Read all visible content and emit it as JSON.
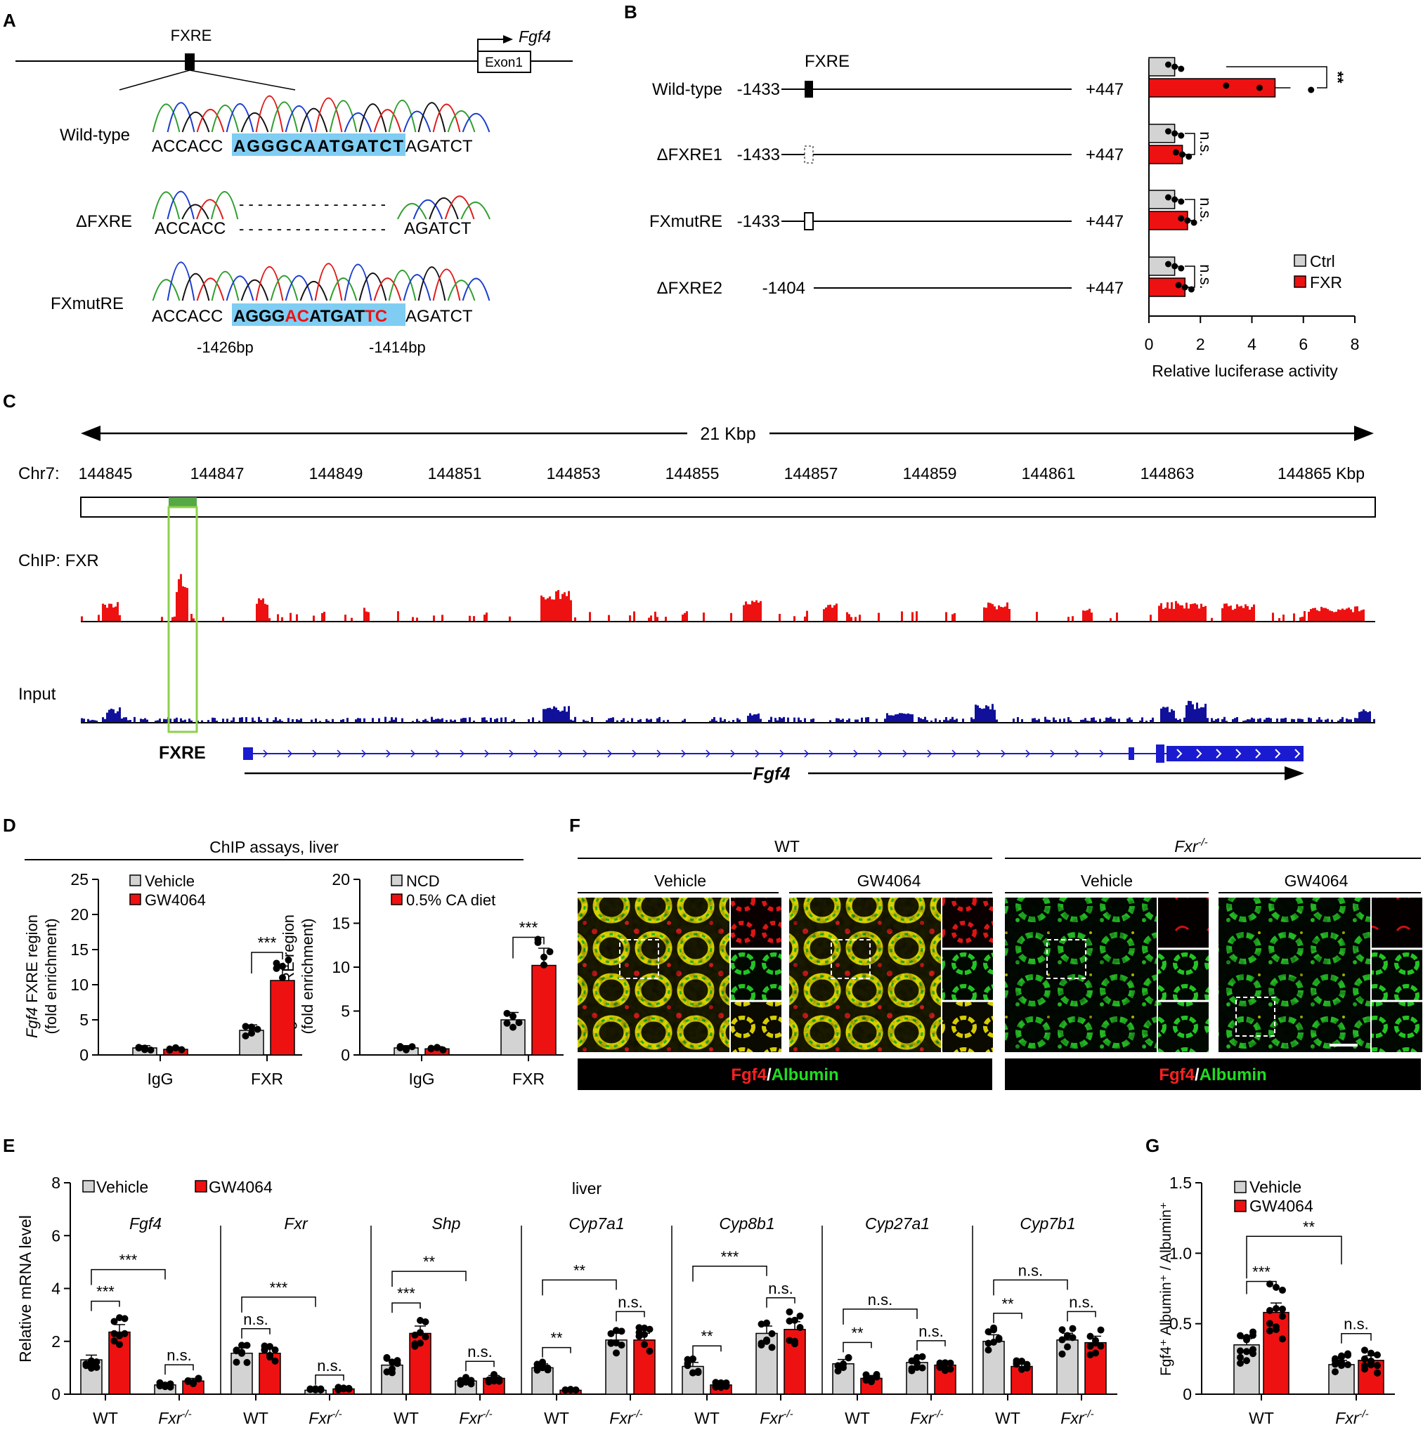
{
  "panels": {
    "A": {
      "letter": "A",
      "fxre_label": "FXRE",
      "gene_label": "Fgf4",
      "exon_label": "Exon1",
      "rows": [
        {
          "name": "Wild-type",
          "left": "ACCACC",
          "core": "AGGGCAATGATCT",
          "right": "AGATCT"
        },
        {
          "name": "ΔFXRE",
          "left": "ACCACC",
          "core": "- - - - - - - - - - - - - - - -",
          "right": "AGATCT"
        },
        {
          "name": "FXmutRE",
          "left": "ACCACC",
          "core_parts": [
            "AGGG",
            "AC",
            "ATGAT",
            "TC"
          ],
          "right": "AGATCT"
        }
      ],
      "positions": [
        "-1426bp",
        "-1414bp"
      ]
    },
    "B": {
      "letter": "B",
      "fxre_label": "FXRE",
      "sig": [
        "**",
        "n.s.",
        "n.s.",
        "n.s."
      ],
      "constructs": [
        {
          "name": "Wild-type",
          "start": "-1433",
          "end": "+447"
        },
        {
          "name": "ΔFXRE1",
          "start": "-1433",
          "end": "+447"
        },
        {
          "name": "FXmutRE",
          "start": "-1433",
          "end": "+447"
        },
        {
          "name": "ΔFXRE2",
          "start": "-1404",
          "end": "+447"
        }
      ]
    },
    "C": {
      "letter": "C",
      "span_label": "21 Kbp",
      "chr_label": "Chr7:",
      "coords": [
        "144845",
        "144847",
        "144849",
        "144851",
        "144853",
        "144855",
        "144857",
        "144859",
        "144861",
        "144863",
        "144865 Kbp"
      ],
      "chip_label": "ChIP: FXR",
      "input_label": "Input",
      "fxre_label": "FXRE",
      "gene_label": "Fgf4",
      "chip_color": "#ee1111",
      "input_color": "#10109a"
    },
    "D": {
      "letter": "D",
      "title": "ChIP assays, liver",
      "ylabel_gene": "Fgf4",
      "ylabel_rest": " FXRE region",
      "ylabel_2": "(fold enrichment)",
      "sig": [
        "***",
        "***"
      ]
    },
    "E": {
      "letter": "E",
      "tissue": "liver",
      "legend": [
        "Vehicle",
        "GW4064"
      ],
      "genes": [
        "Fgf4",
        "Fxr",
        "Shp",
        "Cyp7a1",
        "Cyp8b1",
        "Cyp27a1",
        "Cyp7b1"
      ],
      "group_labels": [
        "WT",
        "Fxr",
        "-/-"
      ],
      "sig": [
        [
          "***",
          "***",
          "n.s."
        ],
        [
          "***",
          "n.s.",
          "n.s."
        ],
        [
          "**",
          "***",
          "n.s."
        ],
        [
          "**",
          "**",
          "n.s."
        ],
        [
          "***",
          "**",
          "n.s."
        ],
        [
          "n.s.",
          "**",
          "n.s."
        ],
        [
          "n.s.",
          "**",
          "n.s."
        ]
      ]
    },
    "F": {
      "letter": "F",
      "genotypes": [
        "WT",
        "Fxr",
        "-/-"
      ],
      "treatments": [
        "Vehicle",
        "GW4064",
        "Vehicle",
        "GW4064"
      ],
      "stain_red": "Fgf4",
      "stain_sep": "/",
      "stain_green": "Albumin"
    },
    "G": {
      "letter": "G",
      "ylabel": "Fgf4⁺ Albumin⁺ / Albumin⁺",
      "legend": [
        "Vehicle",
        "GW4064"
      ],
      "group_labels": [
        "WT",
        "Fxr",
        "-/-"
      ],
      "sig": [
        "**",
        "***",
        "n.s."
      ]
    }
  },
  "chart_data": [
    {
      "id": "B",
      "type": "bar",
      "orientation": "horizontal",
      "categories": [
        "Wild-type",
        "ΔFXRE1",
        "FXmutRE",
        "ΔFXRE2"
      ],
      "series": [
        {
          "name": "Ctrl",
          "color": "#d3d3d3",
          "values": [
            1.0,
            1.0,
            1.0,
            1.0
          ]
        },
        {
          "name": "FXR",
          "color": "#ee1111",
          "values": [
            4.9,
            1.3,
            1.5,
            1.4
          ]
        }
      ],
      "xlabel": "Relative luciferase activity",
      "xlim": [
        0,
        8
      ],
      "xticks": [
        "0",
        "2",
        "4",
        "6",
        "8"
      ]
    },
    {
      "id": "D1",
      "type": "bar",
      "categories": [
        "IgG",
        "FXR"
      ],
      "series": [
        {
          "name": "Vehicle",
          "color": "#d3d3d3",
          "values": [
            1.0,
            3.5
          ]
        },
        {
          "name": "GW4064",
          "color": "#ee1111",
          "values": [
            0.8,
            10.6
          ]
        }
      ],
      "ylim": [
        0,
        25
      ],
      "yticks": [
        "0",
        "5",
        "10",
        "15",
        "20",
        "25"
      ]
    },
    {
      "id": "D2",
      "type": "bar",
      "categories": [
        "IgG",
        "FXR"
      ],
      "series": [
        {
          "name": "NCD",
          "color": "#d3d3d3",
          "values": [
            0.8,
            4.0
          ]
        },
        {
          "name": "0.5% CA diet",
          "color": "#ee1111",
          "values": [
            0.7,
            10.2
          ]
        }
      ],
      "ylim": [
        0,
        20
      ],
      "yticks": [
        "0",
        "5",
        "10",
        "15",
        "20"
      ]
    },
    {
      "id": "E",
      "type": "bar",
      "ylabel": "Relative mRNA level",
      "ylim": [
        0,
        8
      ],
      "yticks": [
        "0",
        "2",
        "4",
        "6",
        "8"
      ],
      "groups": [
        "WT",
        "Fxr-/-"
      ],
      "series_names": [
        "Vehicle",
        "GW4064"
      ],
      "genes": [
        {
          "gene": "Fgf4",
          "values": [
            [
              1.3,
              2.35
            ],
            [
              0.35,
              0.5
            ]
          ]
        },
        {
          "gene": "Fxr",
          "values": [
            [
              1.55,
              1.55
            ],
            [
              0.15,
              0.2
            ]
          ]
        },
        {
          "gene": "Shp",
          "values": [
            [
              1.1,
              2.3
            ],
            [
              0.5,
              0.6
            ]
          ]
        },
        {
          "gene": "Cyp7a1",
          "values": [
            [
              1.0,
              0.15
            ],
            [
              2.05,
              2.05
            ]
          ]
        },
        {
          "gene": "Cyp8b1",
          "values": [
            [
              1.05,
              0.35
            ],
            [
              2.3,
              2.45
            ]
          ]
        },
        {
          "gene": "Cyp27a1",
          "values": [
            [
              1.15,
              0.6
            ],
            [
              1.2,
              1.1
            ]
          ]
        },
        {
          "gene": "Cyp7b1",
          "values": [
            [
              2.0,
              1.05
            ],
            [
              2.05,
              1.95
            ]
          ]
        }
      ]
    },
    {
      "id": "G",
      "type": "bar",
      "categories": [
        "WT",
        "Fxr-/-"
      ],
      "series": [
        {
          "name": "Vehicle",
          "color": "#d3d3d3",
          "values": [
            0.35,
            0.21
          ]
        },
        {
          "name": "GW4064",
          "color": "#ee1111",
          "values": [
            0.58,
            0.24
          ]
        }
      ],
      "ylim": [
        0,
        1.5
      ],
      "yticks": [
        "0",
        "0.5",
        "1.0",
        "1.5"
      ]
    }
  ]
}
